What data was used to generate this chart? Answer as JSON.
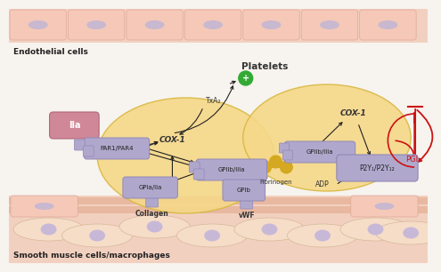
{
  "bg_color": "#f7f3ee",
  "endo_strip_color": "#f2d0c0",
  "endo_cell_color": "#f5c8b8",
  "endo_cell_edge": "#e0a898",
  "endo_nucleus_color": "#c8b8d0",
  "sm_strip_color": "#f2d0c0",
  "sm_cell_color": "#f5ddc8",
  "sm_cell_edge": "#d8b898",
  "sm_nucleus_color": "#c8b8d8",
  "platelet_fill": "#f5d888",
  "platelet_edge": "#d8b840",
  "receptor_fill": "#b0a8cc",
  "receptor_edge": "#9088b8",
  "iia_fill": "#d08898",
  "iia_edge": "#b06878",
  "arrow_color": "#222222",
  "red_color": "#cc1111",
  "green_color": "#33aa33",
  "fibrinogen_color": "#d4a820",
  "title_endothelial": "Endothelial cells",
  "title_smooth": "Smooth muscle cells/macrophages",
  "label_platelets": "Platelets",
  "label_iia": "IIa",
  "label_par": "PAR1/PAR4",
  "label_cox1_left": "COX-1",
  "label_cox1_right": "COX-1",
  "label_gpIIbIIIa_left": "GPIIb/IIIa",
  "label_gpIIbIIIa_right": "GPIIb/IIIa",
  "label_fibrinogen": "Fibrinogen",
  "label_p2y": "P2Y₁/P2Y₁₂",
  "label_txa2": "TxA₂",
  "label_adp": "ADP",
  "label_pgi2": "PGI₂",
  "label_gpia": "GPIa/IIa",
  "label_collagen": "Collagen",
  "label_gpib": "GPIb",
  "label_vwf": "vWF"
}
